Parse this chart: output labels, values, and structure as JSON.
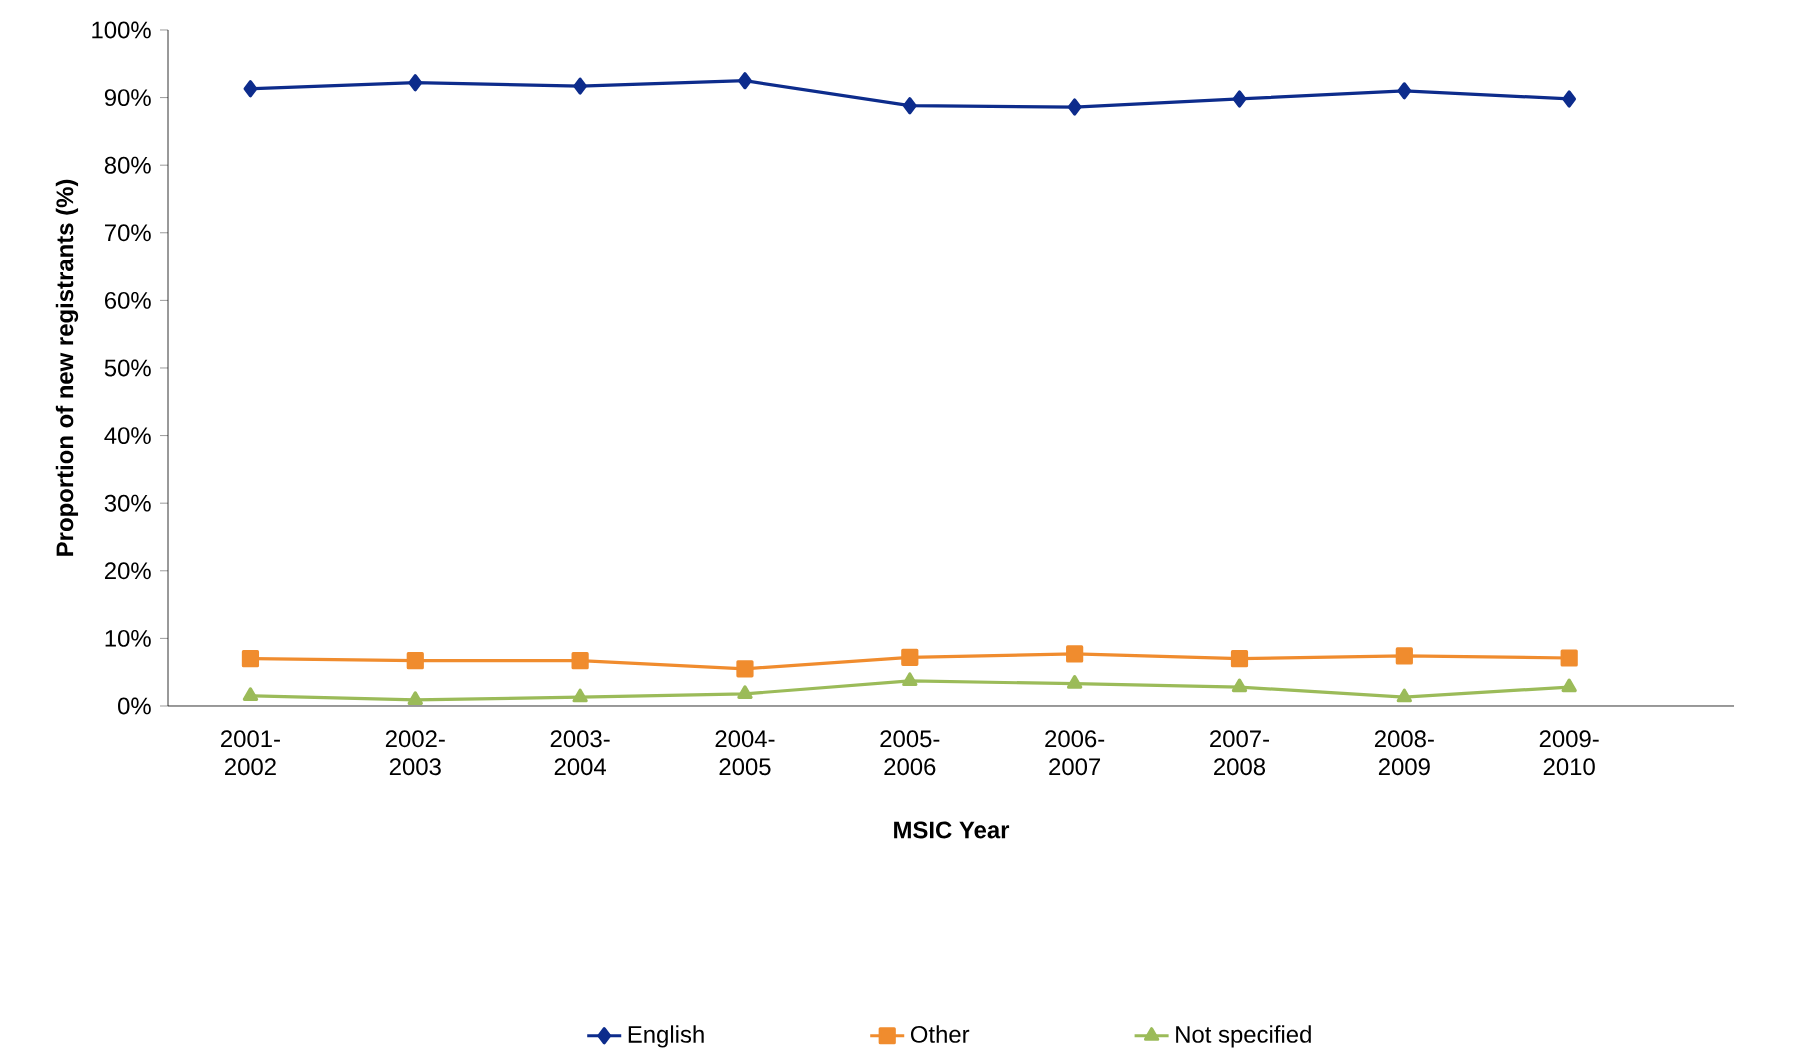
{
  "chart_data": {
    "type": "line",
    "xlabel": "MSIC Year",
    "ylabel": "Proportion of new registrants (%)",
    "categories": [
      "2001-2002",
      "2002-2003",
      "2003-2004",
      "2004-2005",
      "2005-2006",
      "2006-2007",
      "2007-2008",
      "2008-2009",
      "2009-2010"
    ],
    "series": [
      {
        "name": "English",
        "color": "#0d2c8c",
        "marker": "diamond",
        "values": [
          91.3,
          92.2,
          91.7,
          92.5,
          88.8,
          88.6,
          89.8,
          91.0,
          89.8
        ]
      },
      {
        "name": "Other",
        "color": "#f08c2e",
        "marker": "square",
        "values": [
          7.0,
          6.7,
          6.7,
          5.5,
          7.2,
          7.7,
          7.0,
          7.4,
          7.1
        ]
      },
      {
        "name": "Not specified",
        "color": "#9bbb59",
        "marker": "triangle",
        "values": [
          1.5,
          0.9,
          1.3,
          1.8,
          3.7,
          3.3,
          2.8,
          1.3,
          2.8
        ]
      }
    ],
    "ylim": [
      0,
      100
    ],
    "yticks": [
      {
        "value": 0,
        "label": "0%"
      },
      {
        "value": 10,
        "label": "10%"
      },
      {
        "value": 20,
        "label": "20%"
      },
      {
        "value": 30,
        "label": "30%"
      },
      {
        "value": 40,
        "label": "40%"
      },
      {
        "value": 50,
        "label": "50%"
      },
      {
        "value": 60,
        "label": "60%"
      },
      {
        "value": 70,
        "label": "70%"
      },
      {
        "value": 80,
        "label": "80%"
      },
      {
        "value": 90,
        "label": "90%"
      },
      {
        "value": 100,
        "label": "100%"
      }
    ],
    "grid": false,
    "legend": "bottom",
    "line_style": "solid"
  }
}
